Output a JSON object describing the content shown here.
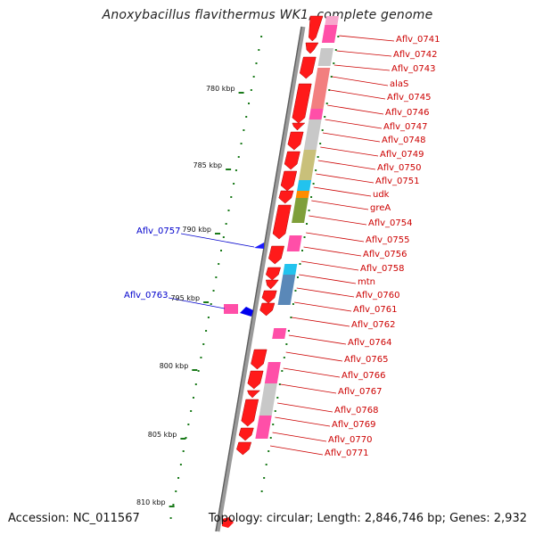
{
  "title": "Anoxybacillus flavithermus WK1, complete genome",
  "accession": "Accession: NC_011567",
  "genome_info": "Topology: circular; Length: 2,846,746 bp; Genes: 2,932",
  "scale": {
    "unit": "kbp",
    "ticks": [
      "780 kbp",
      "785 kbp",
      "790 kbp",
      "795 kbp",
      "800 kbp",
      "805 kbp",
      "810 kbp"
    ]
  },
  "genes_right": [
    "Aflv_0741",
    "Aflv_0742",
    "Aflv_0743",
    "alaS",
    "Aflv_0745",
    "Aflv_0746",
    "Aflv_0747",
    "Aflv_0748",
    "Aflv_0749",
    "Aflv_0750",
    "Aflv_0751",
    "udk",
    "greA",
    "Aflv_0754",
    "Aflv_0755",
    "Aflv_0756",
    "Aflv_0758",
    "mtn",
    "Aflv_0760",
    "Aflv_0761",
    "Aflv_0762",
    "Aflv_0764",
    "Aflv_0765",
    "Aflv_0766",
    "Aflv_0767",
    "Aflv_0768",
    "Aflv_0769",
    "Aflv_0770",
    "Aflv_0771"
  ],
  "genes_left": [
    "Aflv_0757",
    "Aflv_0763"
  ],
  "colors": {
    "backbone": "#8a8a8a",
    "cds": "#ff1a1a",
    "right_label": "#cc0000",
    "left_label": "#0000cc",
    "tick": "#1a7a1a",
    "pink": "#ff4fa8",
    "light_pink": "#f7a7cc",
    "salmon": "#f27f7f",
    "gray": "#c8c8c8",
    "olive": "#c9c07a",
    "green": "#7f9f3a",
    "cyan": "#22c3ee",
    "orange": "#ff8c00",
    "steel": "#5a88b8",
    "blue": "#0000ff"
  }
}
